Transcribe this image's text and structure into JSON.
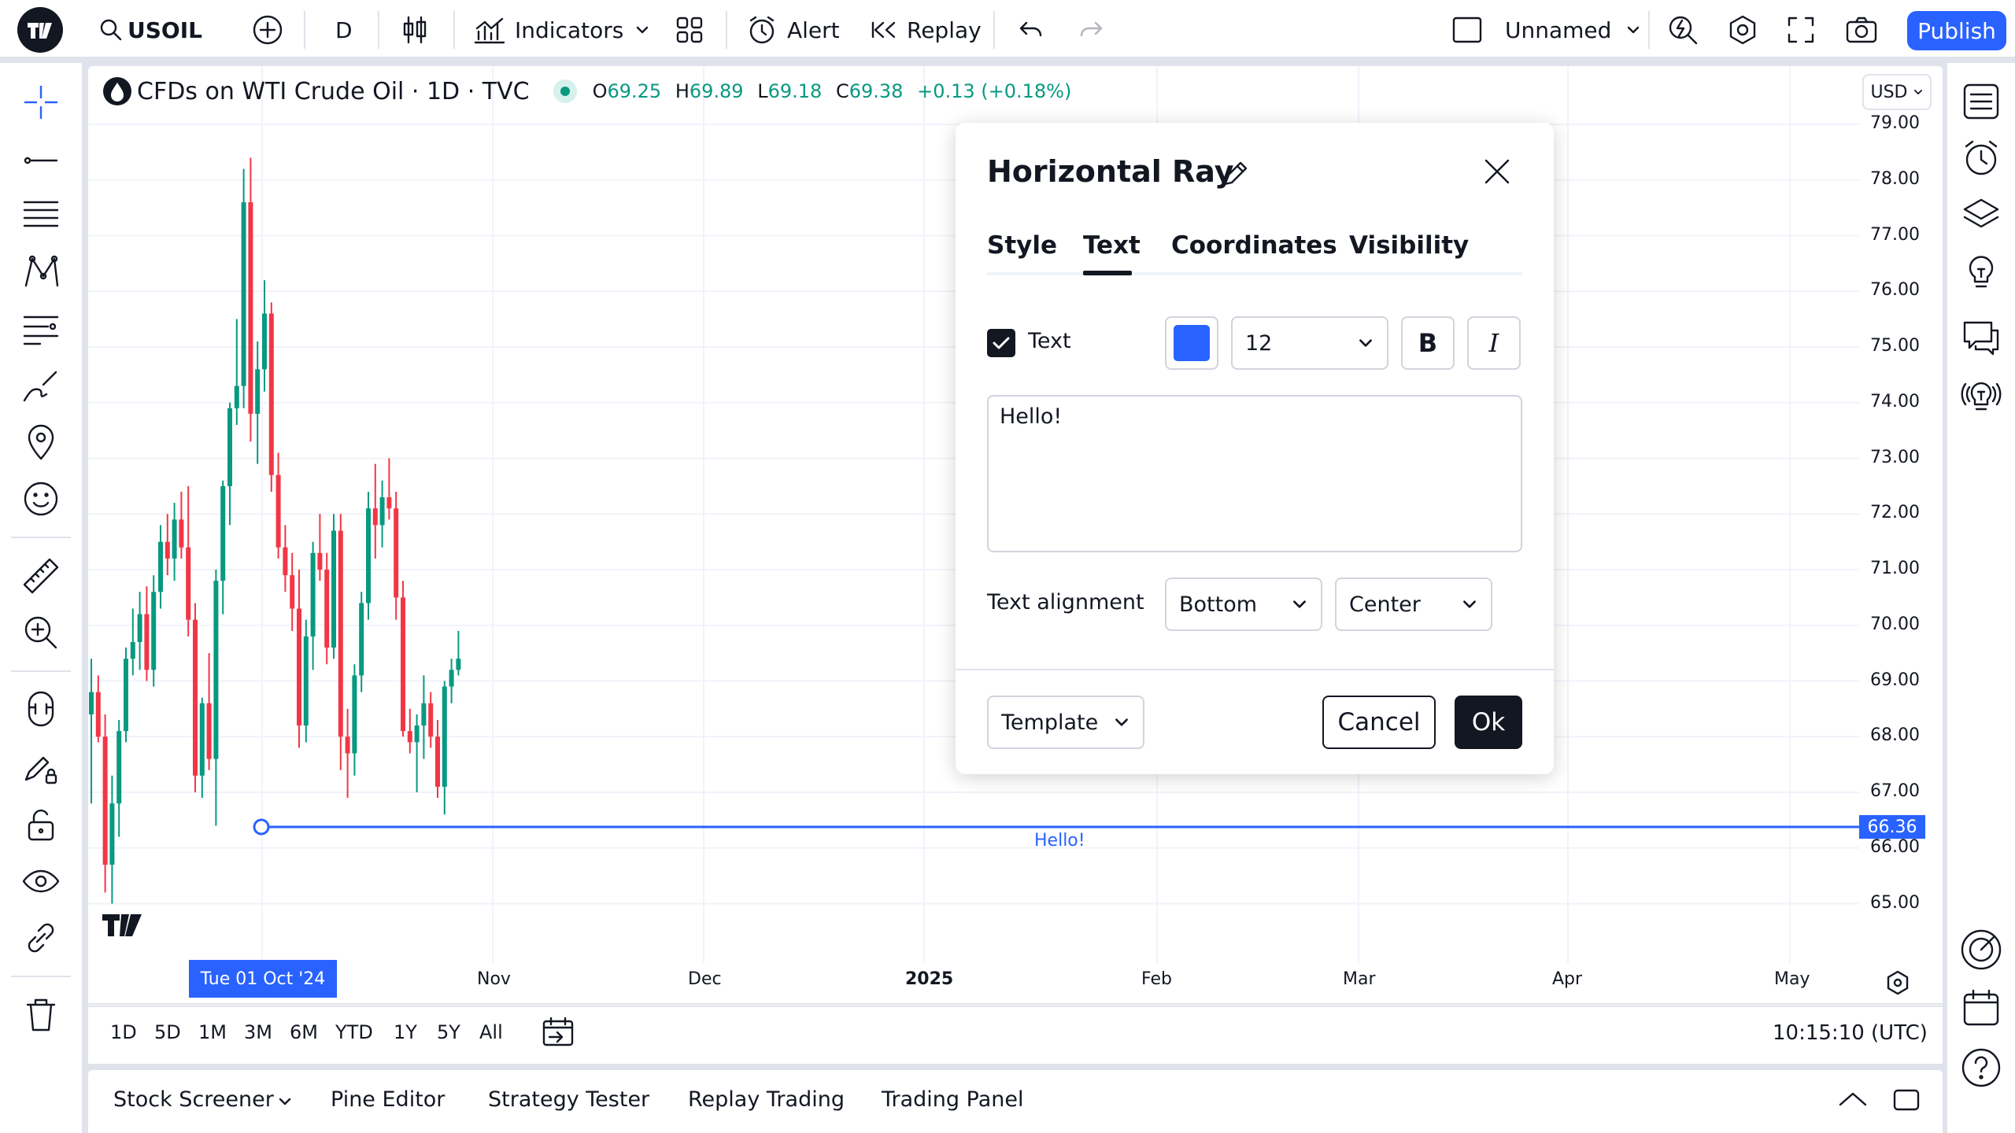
{
  "topbar": {
    "symbol": "USOIL",
    "interval": "D",
    "indicators": "Indicators",
    "alert": "Alert",
    "replay": "Replay",
    "layout_name": "Unnamed",
    "publish": "Publish"
  },
  "legend": {
    "title": "CFDs on WTI Crude Oil · 1D · TVC",
    "open_label": "O",
    "open": "69.25",
    "high_label": "H",
    "high": "69.89",
    "low_label": "L",
    "low": "69.18",
    "close_label": "C",
    "close": "69.38",
    "change": "+0.13 (+0.18%)"
  },
  "currency": "USD",
  "price_axis": [
    "79.00",
    "78.00",
    "77.00",
    "76.00",
    "75.00",
    "74.00",
    "73.00",
    "72.00",
    "71.00",
    "70.00",
    "69.00",
    "68.00",
    "67.00",
    "66.00",
    "65.00"
  ],
  "time_axis": {
    "crosshair_date": "Tue 01 Oct '24",
    "labels": [
      "Nov",
      "Dec",
      "2025",
      "Feb",
      "Mar",
      "Apr",
      "May"
    ]
  },
  "horizontal_ray": {
    "price": "66.36",
    "text": "Hello!"
  },
  "ranges": [
    "1D",
    "5D",
    "1M",
    "3M",
    "6M",
    "YTD",
    "1Y",
    "5Y",
    "All"
  ],
  "clock": "10:15:10 (UTC)",
  "bottom_tabs": [
    "Stock Screener",
    "Pine Editor",
    "Strategy Tester",
    "Replay Trading",
    "Trading Panel"
  ],
  "dialog": {
    "title": "Horizontal Ray",
    "tabs": [
      "Style",
      "Text",
      "Coordinates",
      "Visibility"
    ],
    "active_tab": "Text",
    "text_checkbox_label": "Text",
    "text_checked": true,
    "text_color": "#2962ff",
    "font_size": "12",
    "bold": "B",
    "italic": "I",
    "text_value": "Hello!",
    "alignment_label": "Text alignment",
    "vertical_align": "Bottom",
    "horizontal_align": "Center",
    "template": "Template",
    "cancel": "Cancel",
    "ok": "Ok"
  },
  "colors": {
    "up": "#089981",
    "down": "#f23645",
    "accent": "#2962ff"
  }
}
